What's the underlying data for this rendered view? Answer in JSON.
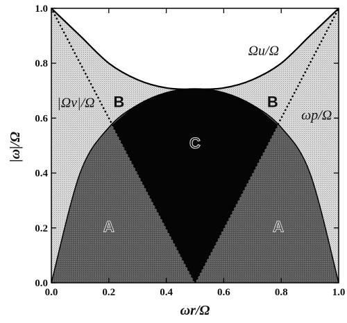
{
  "chart_data": {
    "type": "area",
    "xlabel": "ωr/Ω",
    "ylabel": "|ω|/Ω",
    "xlim": [
      0.0,
      1.0
    ],
    "ylim": [
      0.0,
      1.0
    ],
    "grid": false,
    "x_ticks": [
      "0.0",
      "0.2",
      "0.4",
      "0.6",
      "0.8",
      "1.0"
    ],
    "y_ticks": [
      "0.0",
      "0.2",
      "0.4",
      "0.6",
      "0.8",
      "1.0"
    ],
    "series": [
      {
        "name": "Ωu/Ω",
        "style": "solid",
        "x": [
          0.0,
          0.1,
          0.2,
          0.3,
          0.4,
          0.5,
          0.6,
          0.7,
          0.8,
          0.9,
          1.0
        ],
        "y": [
          1.0,
          0.9,
          0.8,
          0.74,
          0.71,
          0.705,
          0.71,
          0.74,
          0.8,
          0.9,
          1.0
        ]
      },
      {
        "name": "|Ωv|/Ω",
        "style": "dotted",
        "x": [
          0.0,
          0.5,
          1.0
        ],
        "y": [
          1.0,
          0.0,
          1.0
        ]
      },
      {
        "name": "ωp/Ω",
        "style": "boundary",
        "x": [
          0.0,
          0.1,
          0.2,
          0.3,
          0.4,
          0.5,
          0.6,
          0.7,
          0.8,
          0.9,
          1.0
        ],
        "y": [
          0.0,
          0.4,
          0.566,
          0.648,
          0.693,
          0.707,
          0.693,
          0.648,
          0.566,
          0.4,
          0.0
        ]
      }
    ],
    "regions": [
      {
        "label": "A",
        "x": 0.2,
        "y": 0.2,
        "color": "#5a5a5a"
      },
      {
        "label": "A",
        "x": 0.79,
        "y": 0.2,
        "color": "#5a5a5a"
      },
      {
        "label": "B",
        "x": 0.235,
        "y": 0.655,
        "color": "#cfcfcf"
      },
      {
        "label": "B",
        "x": 0.77,
        "y": 0.655,
        "color": "#cfcfcf"
      },
      {
        "label": "C",
        "x": 0.5,
        "y": 0.505,
        "color": "#050505"
      }
    ],
    "curve_labels": [
      {
        "text": "Ωu/Ω",
        "x": 0.685,
        "y": 0.83
      },
      {
        "text": "|Ωv|/Ω",
        "x": 0.02,
        "y": 0.64
      },
      {
        "text": "ωp/Ω",
        "x": 0.87,
        "y": 0.595
      }
    ]
  }
}
